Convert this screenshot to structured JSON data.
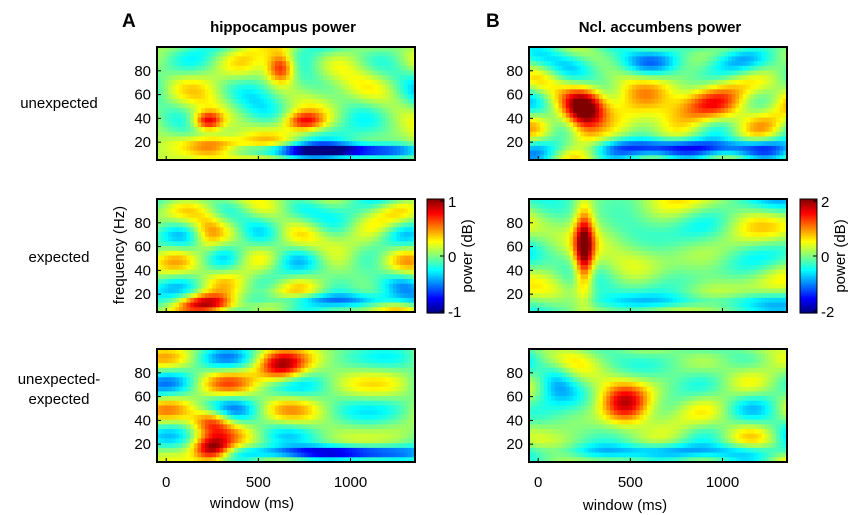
{
  "figure": {
    "panels": [
      {
        "letter": "A",
        "title": "hippocampus power"
      },
      {
        "letter": "B",
        "title": "Ncl. accumbens power"
      }
    ],
    "row_labels": [
      "unexpected",
      "expected",
      "unexpected-\nexpected"
    ],
    "y_axis_label": "frequency (Hz)",
    "x_axis_label": "window (ms)",
    "colorbars": [
      {
        "label": "power (dB)",
        "ticks": [
          "1",
          "0",
          "-1"
        ],
        "min": -1,
        "max": 1
      },
      {
        "label": "power (dB)",
        "ticks": [
          "2",
          "0",
          "-2"
        ],
        "min": -2,
        "max": 2
      }
    ],
    "colormap": "jet"
  },
  "chart_data": {
    "type": "heatmap",
    "x_label": "window (ms)",
    "y_label": "frequency (Hz)",
    "x_range": [
      -50,
      1350
    ],
    "y_range": [
      5,
      100
    ],
    "x_ticks": [
      0,
      500,
      1000
    ],
    "y_ticks": [
      20,
      40,
      60,
      80
    ],
    "colormap": "jet",
    "panels": [
      {
        "column": "hippocampus power",
        "row": "unexpected",
        "color_range_db": [
          -1,
          1
        ],
        "features": [
          {
            "x": [
              100,
              400
            ],
            "y": [
              5,
              25
            ],
            "power_db": 1.0
          },
          {
            "x": [
              400,
              1350
            ],
            "y": [
              8,
              18
            ],
            "power_db": -1.0
          },
          {
            "x": [
              550,
              700
            ],
            "y": [
              70,
              95
            ],
            "power_db": 0.9
          },
          {
            "x": [
              150,
              300
            ],
            "y": [
              30,
              45
            ],
            "power_db": 0.8
          },
          {
            "x": [
              650,
              850
            ],
            "y": [
              30,
              45
            ],
            "power_db": 0.6
          }
        ]
      },
      {
        "column": "hippocampus power",
        "row": "expected",
        "color_range_db": [
          -1,
          1
        ],
        "features": [
          {
            "x": [
              100,
              400
            ],
            "y": [
              5,
              20
            ],
            "power_db": 1.0
          },
          {
            "x": [
              400,
              1350
            ],
            "y": [
              10,
              20
            ],
            "power_db": -0.4
          },
          {
            "x": [
              150,
              300
            ],
            "y": [
              50,
              85
            ],
            "power_db": 0.3
          }
        ]
      },
      {
        "column": "hippocampus power",
        "row": "unexpected-expected",
        "color_range_db": [
          -1,
          1
        ],
        "features": [
          {
            "x": [
              150,
              350
            ],
            "y": [
              5,
              25
            ],
            "power_db": 1.0
          },
          {
            "x": [
              500,
              1350
            ],
            "y": [
              8,
              18
            ],
            "power_db": -0.9
          },
          {
            "x": [
              500,
              750
            ],
            "y": [
              70,
              95
            ],
            "power_db": 0.8
          },
          {
            "x": [
              150,
              350
            ],
            "y": [
              30,
              50
            ],
            "power_db": 0.7
          }
        ]
      },
      {
        "column": "Ncl. accumbens power",
        "row": "unexpected",
        "color_range_db": [
          -2,
          2
        ],
        "features": [
          {
            "x": [
              150,
              350
            ],
            "y": [
              25,
              65
            ],
            "power_db": 2.0
          },
          {
            "x": [
              350,
              1350
            ],
            "y": [
              35,
              70
            ],
            "power_db": 1.0
          },
          {
            "x": [
              300,
              1350
            ],
            "y": [
              8,
              22
            ],
            "power_db": -1.5
          },
          {
            "x": [
              0,
              1350
            ],
            "y": [
              75,
              98
            ],
            "power_db": -0.6
          }
        ]
      },
      {
        "column": "Ncl. accumbens power",
        "row": "expected",
        "color_range_db": [
          -2,
          2
        ],
        "features": [
          {
            "x": [
              200,
              300
            ],
            "y": [
              25,
              90
            ],
            "power_db": 2.0
          },
          {
            "x": [
              300,
              1350
            ],
            "y": [
              8,
              20
            ],
            "power_db": -0.6
          }
        ]
      },
      {
        "column": "Ncl. accumbens power",
        "row": "unexpected-expected",
        "color_range_db": [
          -2,
          2
        ],
        "features": [
          {
            "x": [
              350,
              600
            ],
            "y": [
              35,
              70
            ],
            "power_db": 1.5
          },
          {
            "x": [
              50,
              1350
            ],
            "y": [
              8,
              20
            ],
            "power_db": -0.8
          },
          {
            "x": [
              0,
              200
            ],
            "y": [
              60,
              95
            ],
            "power_db": -0.7
          }
        ]
      }
    ]
  }
}
